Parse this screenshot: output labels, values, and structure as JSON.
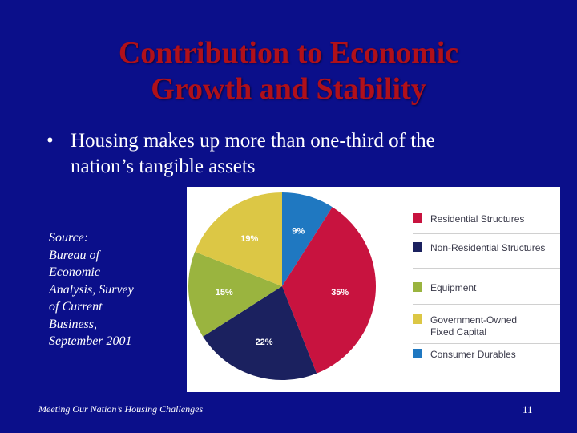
{
  "slide": {
    "title_line1": "Contribution to Economic",
    "title_line2": "Growth and Stability",
    "bullet_symbol": "•",
    "bullet_line1": "Housing makes up more than one-third of the",
    "bullet_line2": "nation’s tangible assets",
    "source_lines": [
      "Source:",
      "Bureau of",
      "Economic",
      "Analysis, Survey",
      "of Current",
      "Business,",
      "September 2001"
    ],
    "footer": "Meeting Our Nation’s Housing Challenges",
    "page_number": "11"
  },
  "colors": {
    "background": "#0b0f8a",
    "title": "#b0101a",
    "text": "#ffffff"
  },
  "chart_data": {
    "type": "pie",
    "title": "",
    "start": "12 o'clock",
    "direction": "clockwise",
    "legend_position": "right",
    "slices": [
      {
        "label": "Consumer Durables",
        "value": 9,
        "display": "9%",
        "color": "#1f78c1"
      },
      {
        "label": "Residential Structures",
        "value": 35,
        "display": "35%",
        "color": "#c8133f"
      },
      {
        "label": "Non-Residential Structures",
        "value": 22,
        "display": "22%",
        "color": "#1b215f"
      },
      {
        "label": "Equipment",
        "value": 15,
        "display": "15%",
        "color": "#9ab43f"
      },
      {
        "label": "Government-Owned Fixed Capital",
        "value": 19,
        "display": "19%",
        "color": "#dcc745"
      }
    ],
    "legend": [
      {
        "lines": [
          "Residential Structures"
        ],
        "color": "#c8133f"
      },
      {
        "lines": [
          "Non-Residential Structures"
        ],
        "color": "#1b215f"
      },
      {
        "lines": [
          "Equipment"
        ],
        "color": "#9ab43f"
      },
      {
        "lines": [
          "Government-Owned",
          "Fixed Capital"
        ],
        "color": "#dcc745"
      },
      {
        "lines": [
          "Consumer Durables"
        ],
        "color": "#1f78c1"
      }
    ]
  }
}
